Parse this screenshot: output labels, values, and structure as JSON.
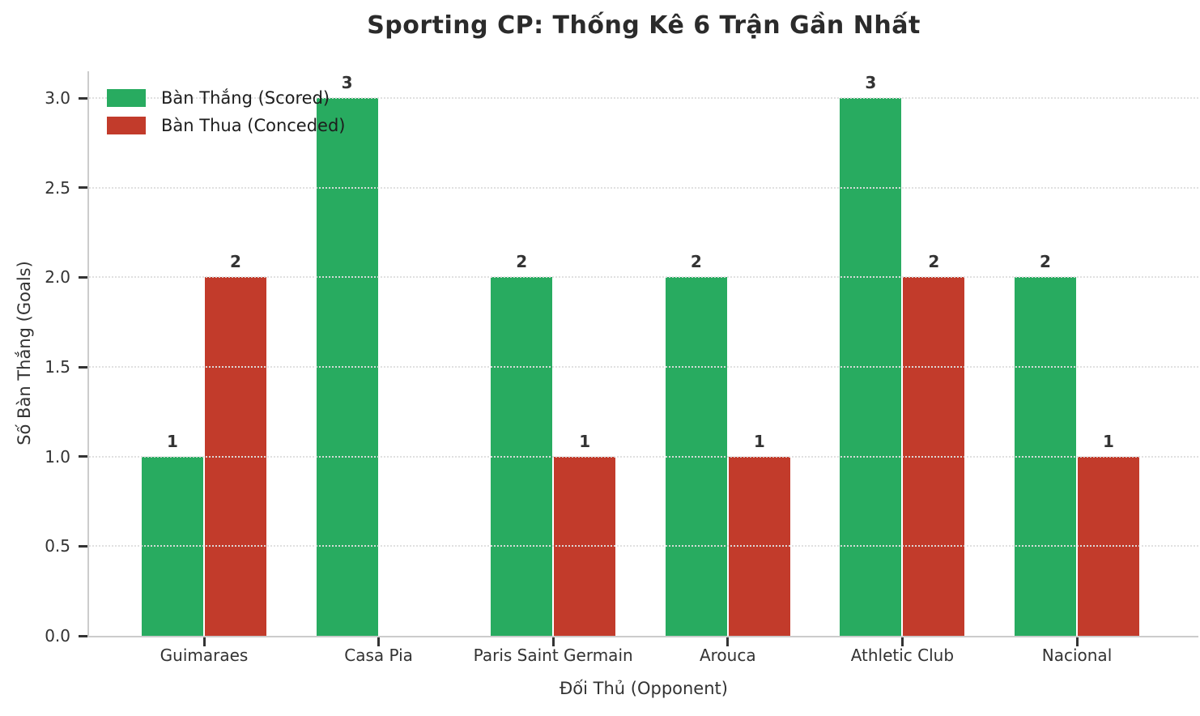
{
  "chart_data": {
    "type": "bar",
    "title": "Sporting CP: Thống Kê 6 Trận Gần Nhất",
    "xlabel": "Đối Thủ (Opponent)",
    "ylabel": "Số Bàn Thắng (Goals)",
    "categories": [
      "Guimaraes",
      "Casa Pia",
      "Paris Saint Germain",
      "Arouca",
      "Athletic Club",
      "Nacional"
    ],
    "series": [
      {
        "name": "Bàn Thắng (Scored)",
        "key": "scored",
        "color": "#28ab60",
        "values": [
          1,
          3,
          2,
          2,
          3,
          2
        ]
      },
      {
        "name": "Bàn Thua (Conceded)",
        "key": "conceded",
        "color": "#c23b2b",
        "values": [
          2,
          0,
          1,
          1,
          2,
          1
        ]
      }
    ],
    "bar_value_labels": [
      "1",
      "2",
      "3",
      "",
      "2",
      "1",
      "2",
      "1",
      "3",
      "2",
      "2",
      "1"
    ],
    "ylim": [
      0,
      3.15
    ],
    "yticks": [
      0.0,
      0.5,
      1.0,
      1.5,
      2.0,
      2.5,
      3.0
    ],
    "ytick_labels": [
      "0.0",
      "0.5",
      "1.0",
      "1.5",
      "2.0",
      "2.5",
      "3.0"
    ],
    "grid": {
      "axis": "y",
      "style": "dotted",
      "color": "#dedede"
    },
    "legend": {
      "position": "upper-left",
      "frame": false
    },
    "hide_zero_bars": true,
    "colors": {
      "text": "#333333",
      "title": "#2b2b2b",
      "spine": "#cccccc"
    }
  }
}
